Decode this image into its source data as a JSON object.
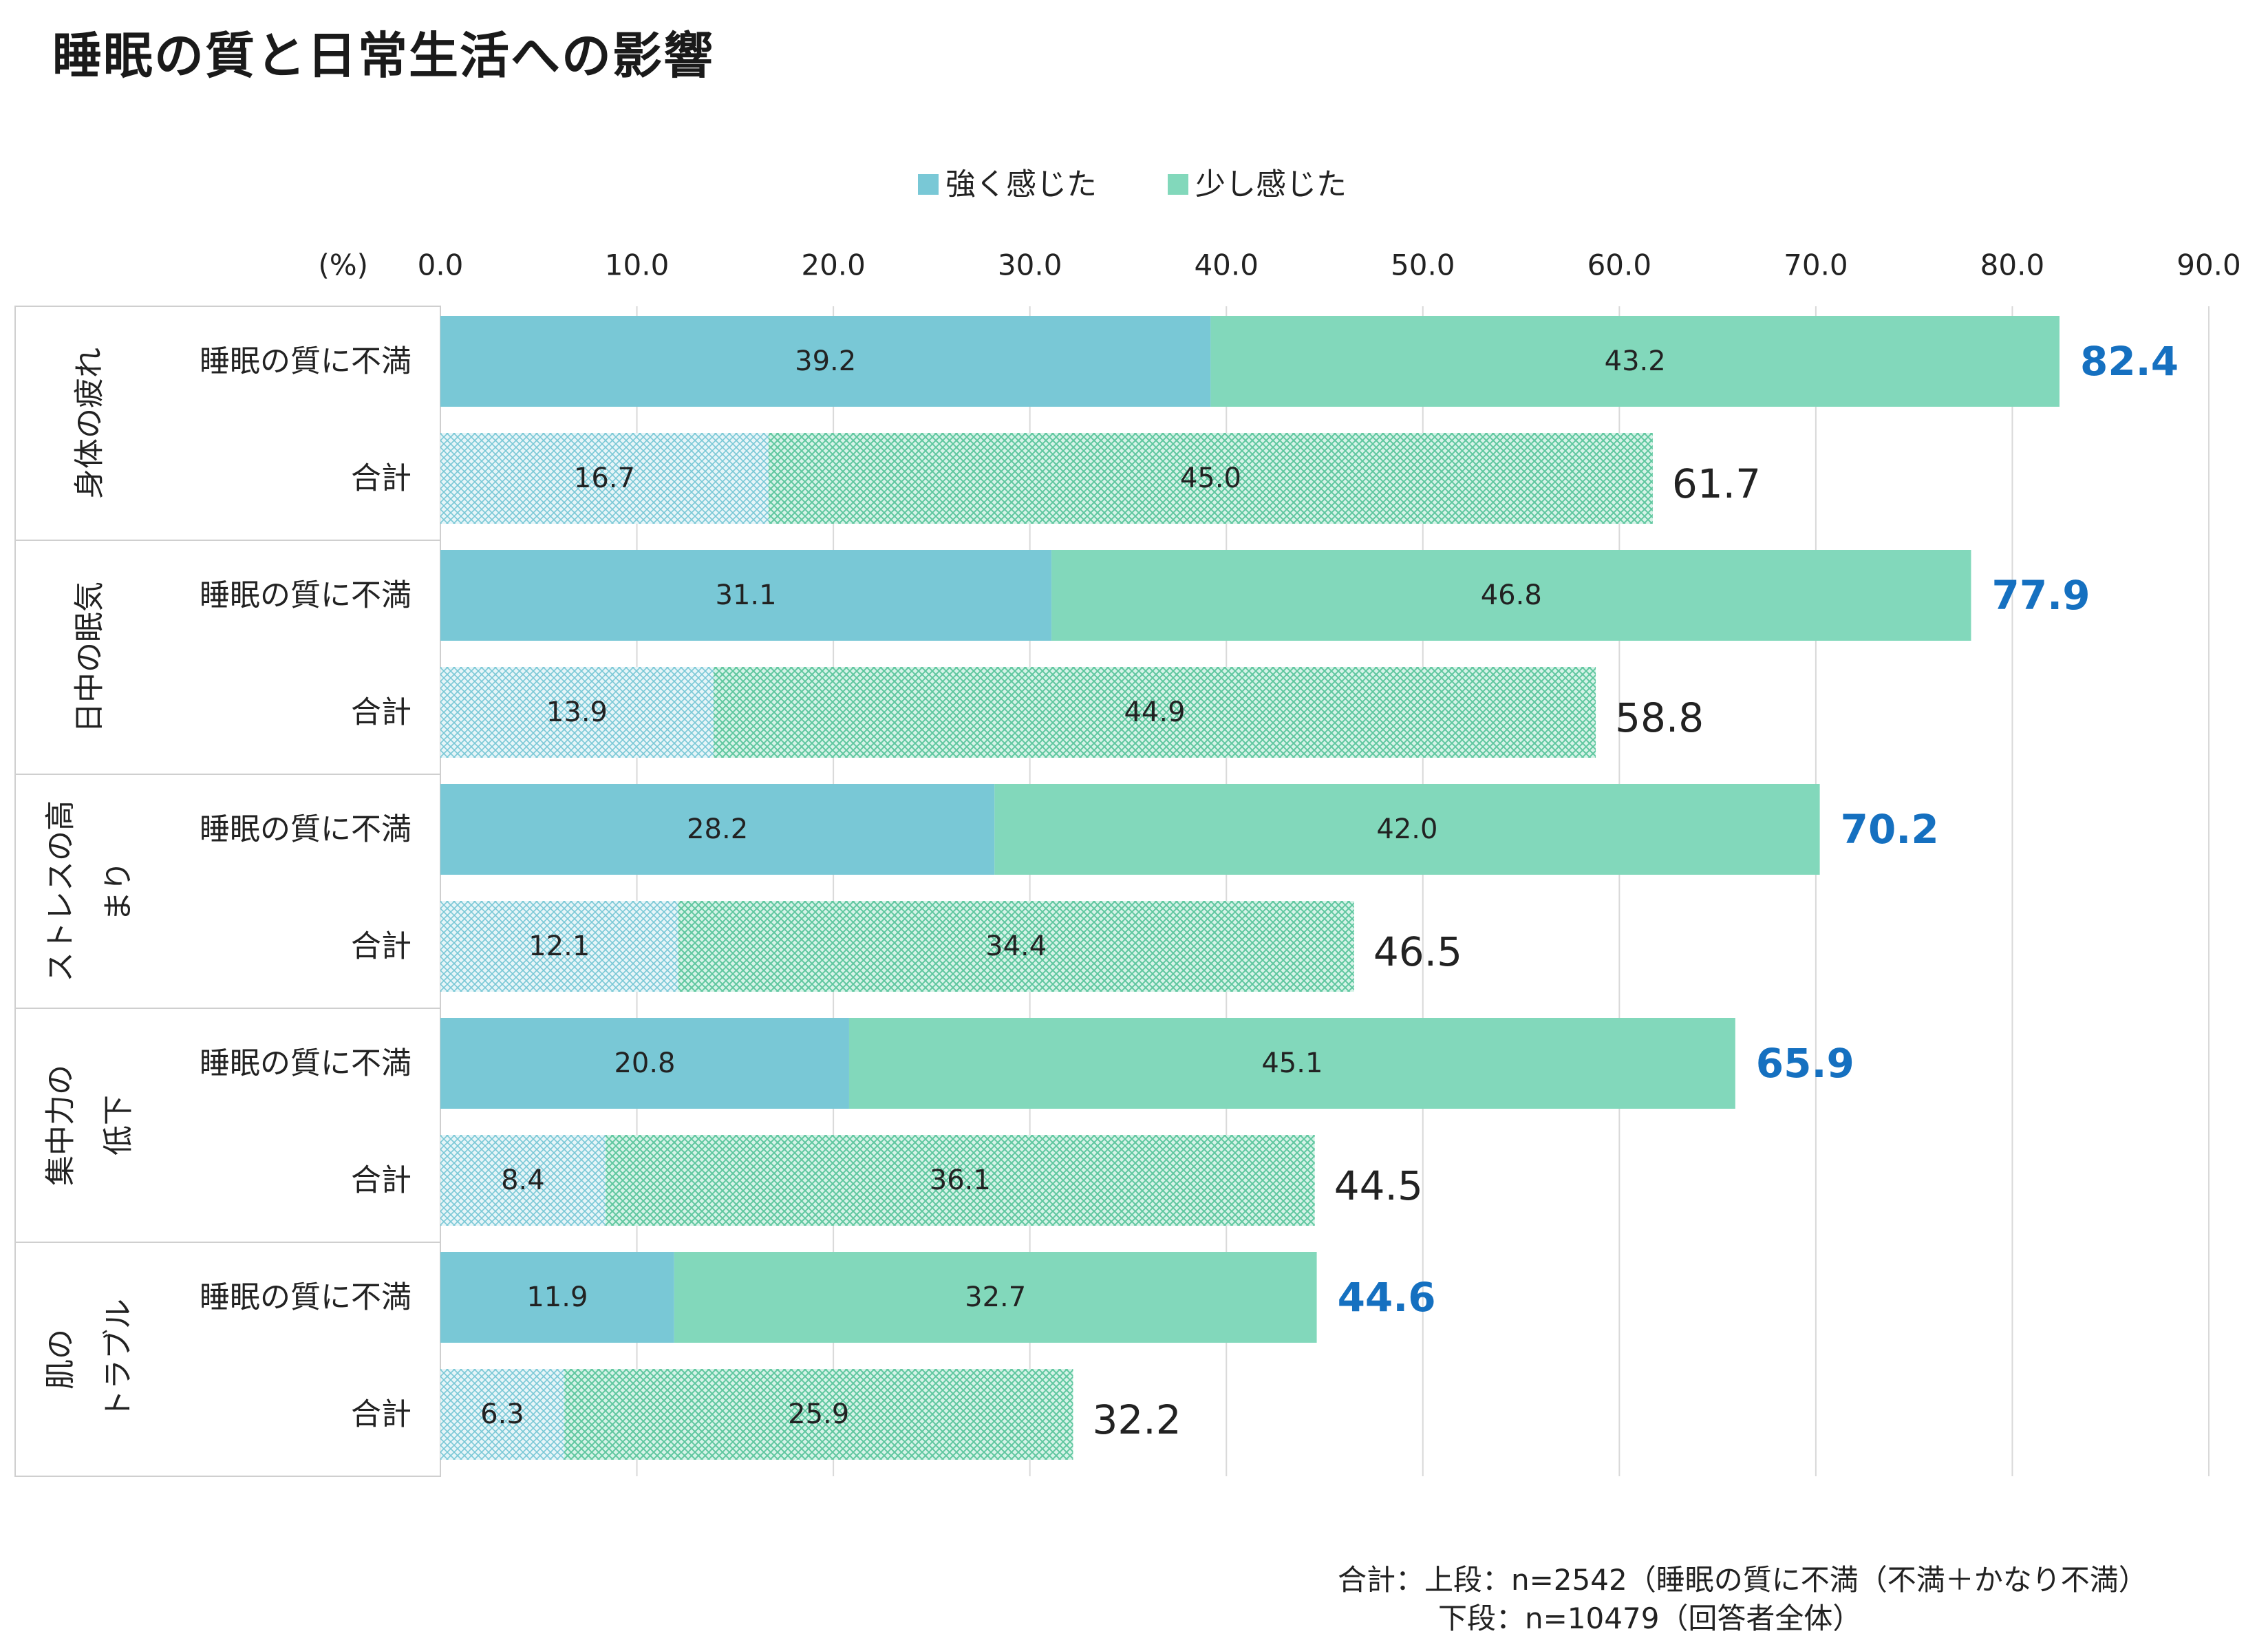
{
  "title": "睡眠の質と日常生活への影響",
  "colors": {
    "strong": "#79c8d6",
    "slight": "#82d8bb",
    "highlight_total": "#1570c0"
  },
  "chart_data": {
    "type": "bar",
    "orientation": "horizontal",
    "stacked": true,
    "title": "睡眠の質と日常生活への影響",
    "unit_label": "(%)",
    "xlim": [
      0,
      90
    ],
    "ticks": [
      "0.0",
      "10.0",
      "20.0",
      "30.0",
      "40.0",
      "50.0",
      "60.0",
      "70.0",
      "80.0",
      "90.0"
    ],
    "grid": true,
    "legend": {
      "position": "top-center",
      "entries": [
        "強く感じた",
        "少し感じた"
      ]
    },
    "groups": [
      {
        "label_lines": [
          "身体の疲れ"
        ],
        "rows": [
          {
            "label": "睡眠の質に不満",
            "strong": 39.2,
            "slight": 43.2,
            "total": 82.4,
            "strong_label": "39.2",
            "slight_label": "43.2",
            "total_label": "82.4",
            "highlight": true
          },
          {
            "label": "合計",
            "strong": 16.7,
            "slight": 45.0,
            "total": 61.7,
            "strong_label": "16.7",
            "slight_label": "45.0",
            "total_label": "61.7",
            "highlight": false
          }
        ]
      },
      {
        "label_lines": [
          "日中の眠気"
        ],
        "rows": [
          {
            "label": "睡眠の質に不満",
            "strong": 31.1,
            "slight": 46.8,
            "total": 77.9,
            "strong_label": "31.1",
            "slight_label": "46.8",
            "total_label": "77.9",
            "highlight": true
          },
          {
            "label": "合計",
            "strong": 13.9,
            "slight": 44.9,
            "total": 58.8,
            "strong_label": "13.9",
            "slight_label": "44.9",
            "total_label": "58.8",
            "highlight": false
          }
        ]
      },
      {
        "label_lines": [
          "ストレスの高",
          "まり"
        ],
        "rows": [
          {
            "label": "睡眠の質に不満",
            "strong": 28.2,
            "slight": 42.0,
            "total": 70.2,
            "strong_label": "28.2",
            "slight_label": "42.0",
            "total_label": "70.2",
            "highlight": true
          },
          {
            "label": "合計",
            "strong": 12.1,
            "slight": 34.4,
            "total": 46.5,
            "strong_label": "12.1",
            "slight_label": "34.4",
            "total_label": "46.5",
            "highlight": false
          }
        ]
      },
      {
        "label_lines": [
          "集中力の",
          "低下"
        ],
        "rows": [
          {
            "label": "睡眠の質に不満",
            "strong": 20.8,
            "slight": 45.1,
            "total": 65.9,
            "strong_label": "20.8",
            "slight_label": "45.1",
            "total_label": "65.9",
            "highlight": true
          },
          {
            "label": "合計",
            "strong": 8.4,
            "slight": 36.1,
            "total": 44.5,
            "strong_label": "8.4",
            "slight_label": "36.1",
            "total_label": "44.5",
            "highlight": false
          }
        ]
      },
      {
        "label_lines": [
          "肌の",
          "トラブル"
        ],
        "rows": [
          {
            "label": "睡眠の質に不満",
            "strong": 11.9,
            "slight": 32.7,
            "total": 44.6,
            "strong_label": "11.9",
            "slight_label": "32.7",
            "total_label": "44.6",
            "highlight": true
          },
          {
            "label": "合計",
            "strong": 6.3,
            "slight": 25.9,
            "total": 32.2,
            "strong_label": "6.3",
            "slight_label": "25.9",
            "total_label": "32.2",
            "highlight": false
          }
        ]
      }
    ]
  },
  "notes": {
    "line1": "合計：上段：n=2542（睡眠の質に不満（不満＋かなり不満）",
    "line2": "下段：n=10479（回答者全体）"
  }
}
